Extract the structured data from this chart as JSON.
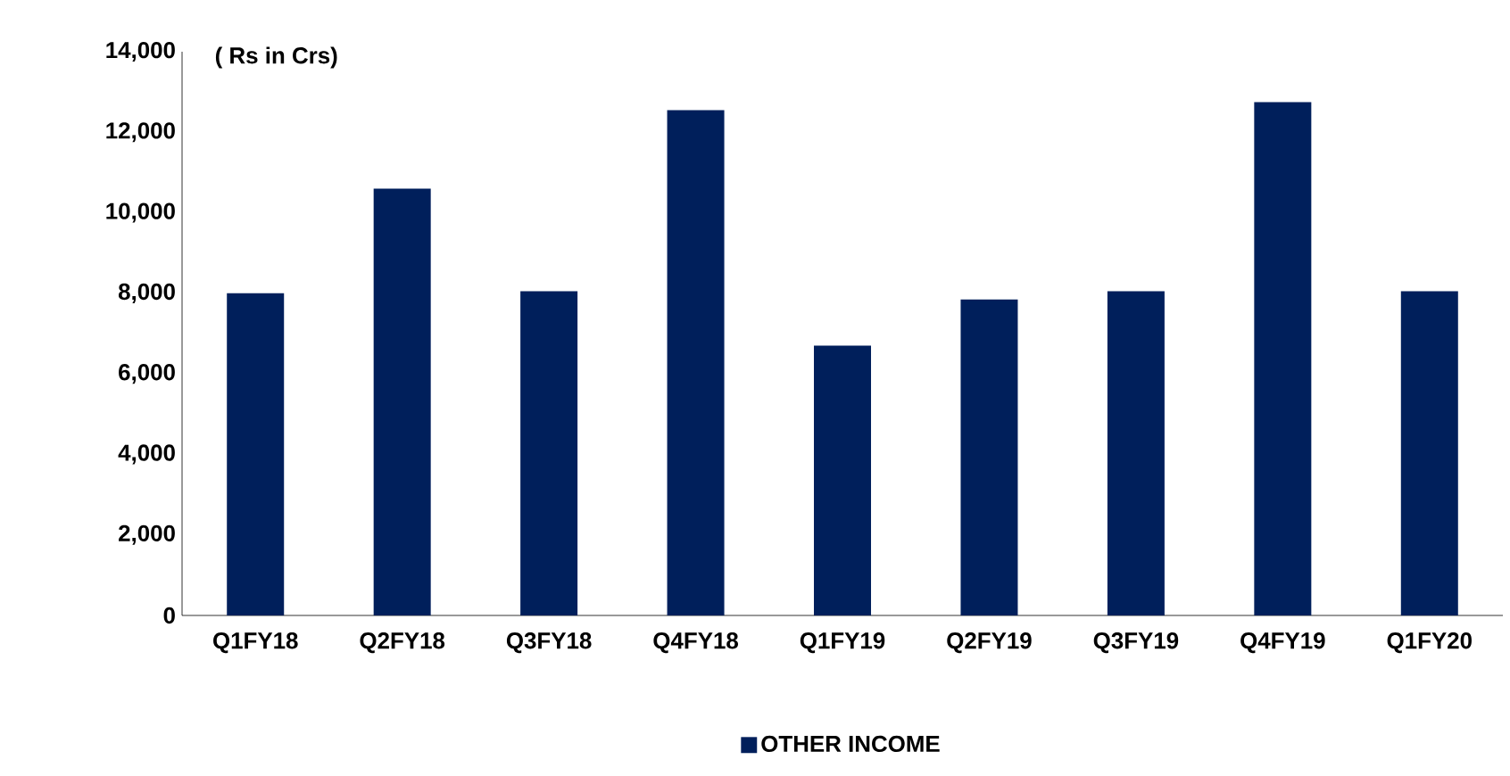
{
  "chart_data": {
    "type": "bar",
    "categories": [
      "Q1FY18",
      "Q2FY18",
      "Q3FY18",
      "Q4FY18",
      "Q1FY19",
      "Q2FY19",
      "Q3FY19",
      "Q4FY19",
      "Q1FY20"
    ],
    "series": [
      {
        "name": "OTHER INCOME",
        "color": "#001f5b",
        "values": [
          8000,
          10600,
          8050,
          12550,
          6700,
          7850,
          8050,
          12750,
          8050
        ]
      }
    ],
    "ylim": [
      0,
      14000
    ],
    "yticks": [
      {
        "value": 0,
        "label": "0"
      },
      {
        "value": 2000,
        "label": "2,000"
      },
      {
        "value": 4000,
        "label": "4,000"
      },
      {
        "value": 6000,
        "label": "6,000"
      },
      {
        "value": 8000,
        "label": "8,000"
      },
      {
        "value": 10000,
        "label": "10,000"
      },
      {
        "value": 12000,
        "label": "12,000"
      },
      {
        "value": 14000,
        "label": "14,000"
      }
    ],
    "annotations": [
      "( Rs in Crs)"
    ],
    "legend": "bottom",
    "grid": false
  }
}
